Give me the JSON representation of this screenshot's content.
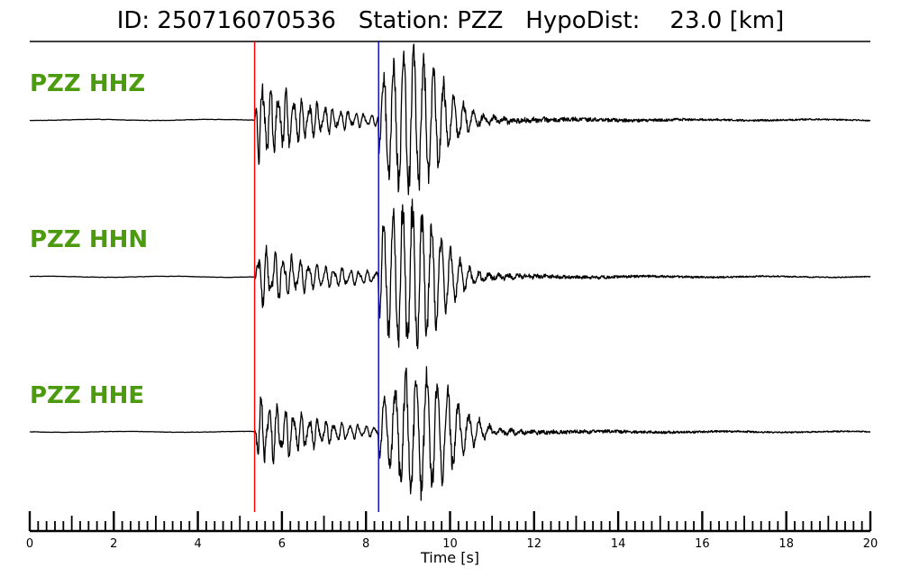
{
  "title": "ID: 250716070536   Station: PZZ   HypoDist:    23.0 [km]",
  "chart_data": {
    "type": "line",
    "title": "ID: 250716070536   Station: PZZ   HypoDist:    23.0 [km]",
    "event_id": "250716070536",
    "station": "PZZ",
    "hypo_dist_km": 23.0,
    "xlabel": "Time [s]",
    "ylabel": "",
    "xlim": [
      0,
      20
    ],
    "xticks": [
      0,
      2,
      4,
      6,
      8,
      10,
      12,
      14,
      16,
      18,
      20
    ],
    "minor_tick_step": 0.2,
    "grid": false,
    "markers": [
      {
        "name": "P",
        "time": 5.35,
        "color": "#ff0000"
      },
      {
        "name": "S",
        "time": 8.3,
        "color": "#0000cc"
      }
    ],
    "series": [
      {
        "name": "PZZ HHZ",
        "label_color": "#4c9a0e",
        "noise": 0.012,
        "p_amp": 0.72,
        "p_decay": 1.3,
        "p_freq": 5.4,
        "s_amp": 1.0,
        "s_center": 9.1,
        "s_width": 0.95,
        "s_freq": 4.2,
        "coda_amp": 0.09,
        "coda_decay": 5.5
      },
      {
        "name": "PZZ HHN",
        "label_color": "#4c9a0e",
        "noise": 0.012,
        "p_amp": 0.45,
        "p_decay": 1.6,
        "p_freq": 5.0,
        "s_amp": 1.0,
        "s_center": 9.1,
        "s_width": 0.9,
        "s_freq": 4.4,
        "coda_amp": 0.08,
        "coda_decay": 5.0
      },
      {
        "name": "PZZ HHE",
        "label_color": "#4c9a0e",
        "noise": 0.012,
        "p_amp": 0.62,
        "p_decay": 1.4,
        "p_freq": 5.2,
        "s_amp": 1.0,
        "s_center": 9.35,
        "s_width": 0.95,
        "s_freq": 4.0,
        "coda_amp": 0.09,
        "coda_decay": 5.5
      }
    ]
  }
}
